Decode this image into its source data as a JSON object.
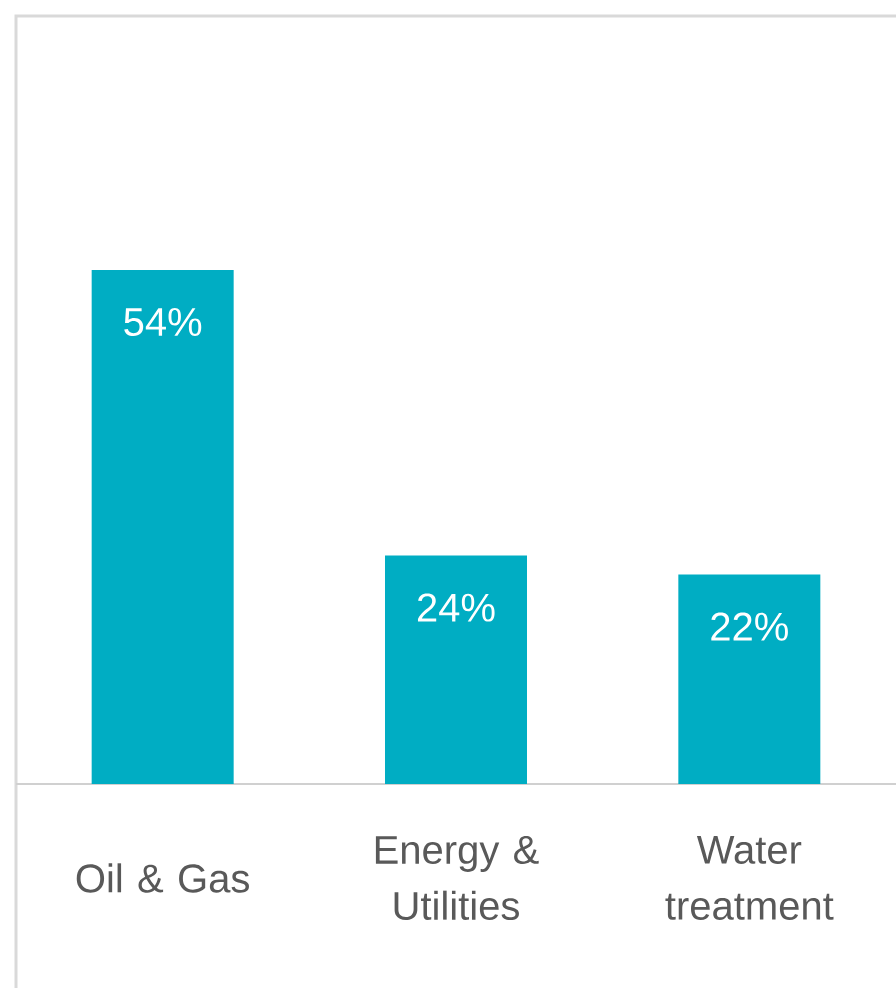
{
  "chart_data": {
    "type": "bar",
    "categories": [
      "Oil & Gas",
      "Energy & Utilities",
      "Water treatment"
    ],
    "values": [
      54,
      24,
      22
    ],
    "value_labels": [
      "54%",
      "24%",
      "22%"
    ],
    "color": "#00adc3"
  }
}
